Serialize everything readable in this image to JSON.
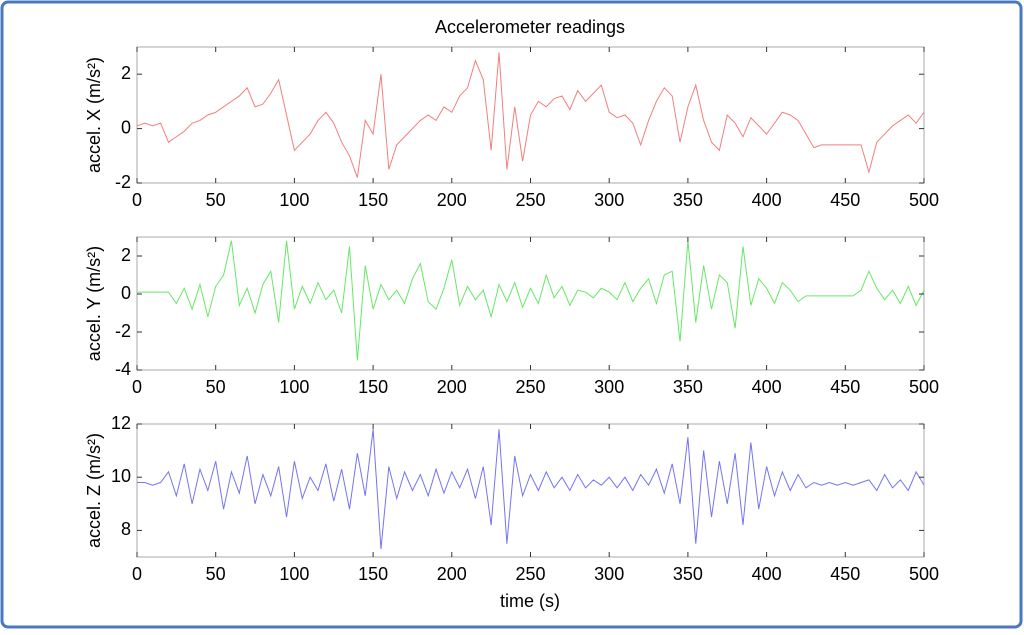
{
  "chart_data": [
    {
      "type": "line",
      "title": "Accelerometer readings",
      "y_label": "accel. X (m/s²)",
      "color": "#f27f7f",
      "xlim": [
        0,
        500
      ],
      "xticks": [
        0,
        50,
        100,
        150,
        200,
        250,
        300,
        350,
        400,
        450,
        500
      ],
      "ylim": [
        -2,
        3
      ],
      "yticks": [
        -2,
        0,
        2
      ],
      "x": [
        0,
        5,
        10,
        15,
        20,
        25,
        30,
        35,
        40,
        45,
        50,
        55,
        60,
        65,
        70,
        75,
        80,
        85,
        90,
        95,
        100,
        105,
        110,
        115,
        120,
        125,
        130,
        135,
        140,
        145,
        150,
        155,
        160,
        165,
        170,
        175,
        180,
        185,
        190,
        195,
        200,
        205,
        210,
        215,
        220,
        225,
        230,
        235,
        240,
        245,
        250,
        255,
        260,
        265,
        270,
        275,
        280,
        285,
        290,
        295,
        300,
        305,
        310,
        315,
        320,
        325,
        330,
        335,
        340,
        345,
        350,
        355,
        360,
        365,
        370,
        375,
        380,
        385,
        390,
        395,
        400,
        405,
        410,
        415,
        420,
        425,
        430,
        435,
        440,
        445,
        450,
        455,
        460,
        465,
        470,
        475,
        480,
        485,
        490,
        495,
        500
      ],
      "values": [
        0.1,
        0.2,
        0.1,
        0.2,
        -0.5,
        -0.3,
        -0.1,
        0.2,
        0.3,
        0.5,
        0.6,
        0.8,
        1.0,
        1.2,
        1.5,
        0.8,
        0.9,
        1.3,
        1.8,
        0.5,
        -0.8,
        -0.5,
        -0.2,
        0.3,
        0.6,
        0.2,
        -0.5,
        -1.0,
        -1.8,
        0.3,
        -0.2,
        2.0,
        -1.5,
        -0.6,
        -0.3,
        0,
        0.3,
        0.5,
        0.3,
        0.8,
        0.6,
        1.2,
        1.5,
        2.5,
        1.8,
        -0.8,
        2.8,
        -1.5,
        0.8,
        -1.2,
        0.5,
        1.0,
        0.8,
        1.1,
        1.2,
        0.7,
        1.4,
        1.0,
        1.3,
        1.6,
        0.6,
        0.4,
        0.5,
        0.2,
        -0.6,
        0.3,
        1.0,
        1.5,
        1.2,
        -0.5,
        0.8,
        1.6,
        0.3,
        -0.5,
        -0.8,
        0.5,
        0.2,
        -0.3,
        0.4,
        0.1,
        -0.2,
        0.2,
        0.6,
        0.5,
        0.3,
        -0.2,
        -0.7,
        -0.6,
        -0.6,
        -0.6,
        -0.6,
        -0.6,
        -0.6,
        -1.6,
        -0.5,
        -0.2,
        0.1,
        0.3,
        0.5,
        0.2,
        0.6
      ]
    },
    {
      "type": "line",
      "y_label": "accel. Y (m/s²)",
      "color": "#66e866",
      "xlim": [
        0,
        500
      ],
      "xticks": [
        0,
        50,
        100,
        150,
        200,
        250,
        300,
        350,
        400,
        450,
        500
      ],
      "ylim": [
        -4,
        3
      ],
      "yticks": [
        -4,
        -2,
        0,
        2
      ],
      "x": [
        0,
        5,
        10,
        15,
        20,
        25,
        30,
        35,
        40,
        45,
        50,
        55,
        60,
        65,
        70,
        75,
        80,
        85,
        90,
        95,
        100,
        105,
        110,
        115,
        120,
        125,
        130,
        135,
        140,
        145,
        150,
        155,
        160,
        165,
        170,
        175,
        180,
        185,
        190,
        195,
        200,
        205,
        210,
        215,
        220,
        225,
        230,
        235,
        240,
        245,
        250,
        255,
        260,
        265,
        270,
        275,
        280,
        285,
        290,
        295,
        300,
        305,
        310,
        315,
        320,
        325,
        330,
        335,
        340,
        345,
        350,
        355,
        360,
        365,
        370,
        375,
        380,
        385,
        390,
        395,
        400,
        405,
        410,
        415,
        420,
        425,
        430,
        435,
        440,
        445,
        450,
        455,
        460,
        465,
        470,
        475,
        480,
        485,
        490,
        495,
        500
      ],
      "values": [
        0.1,
        0.1,
        0.1,
        0.1,
        0.1,
        -0.5,
        0.3,
        -0.8,
        0.5,
        -1.2,
        0.4,
        1.0,
        2.8,
        -0.6,
        0.3,
        -1.0,
        0.5,
        1.2,
        -1.5,
        2.8,
        -0.8,
        0.4,
        -0.5,
        0.6,
        -0.3,
        0.2,
        -1.0,
        2.5,
        -3.5,
        1.5,
        -0.8,
        0.5,
        -0.3,
        0.2,
        -0.5,
        0.8,
        1.6,
        -0.4,
        -0.8,
        0.3,
        1.8,
        -0.6,
        0.4,
        -0.3,
        0.2,
        -1.2,
        0.5,
        -0.4,
        0.6,
        -0.7,
        0.3,
        -0.5,
        1.0,
        -0.2,
        0.4,
        -0.6,
        0.2,
        0.1,
        -0.2,
        0.3,
        0.1,
        -0.3,
        0.6,
        -0.4,
        0.3,
        0.8,
        -0.5,
        1.0,
        1.2,
        -2.5,
        2.8,
        -1.5,
        1.5,
        -0.8,
        1.0,
        0.6,
        -1.8,
        2.5,
        -0.6,
        0.8,
        0.3,
        -0.5,
        0.6,
        0.2,
        -0.4,
        -0.1,
        -0.1,
        -0.1,
        -0.1,
        -0.1,
        -0.1,
        -0.1,
        0.2,
        1.2,
        0.3,
        -0.3,
        0.2,
        -0.5,
        0.4,
        -0.6,
        0.2
      ]
    },
    {
      "type": "line",
      "y_label": "accel. Z (m/s²)",
      "x_label": "time (s)",
      "color": "#7474f2",
      "xlim": [
        0,
        500
      ],
      "xticks": [
        0,
        50,
        100,
        150,
        200,
        250,
        300,
        350,
        400,
        450,
        500
      ],
      "ylim": [
        7,
        12
      ],
      "yticks": [
        8,
        10,
        12
      ],
      "x": [
        0,
        5,
        10,
        15,
        20,
        25,
        30,
        35,
        40,
        45,
        50,
        55,
        60,
        65,
        70,
        75,
        80,
        85,
        90,
        95,
        100,
        105,
        110,
        115,
        120,
        125,
        130,
        135,
        140,
        145,
        150,
        155,
        160,
        165,
        170,
        175,
        180,
        185,
        190,
        195,
        200,
        205,
        210,
        215,
        220,
        225,
        230,
        235,
        240,
        245,
        250,
        255,
        260,
        265,
        270,
        275,
        280,
        285,
        290,
        295,
        300,
        305,
        310,
        315,
        320,
        325,
        330,
        335,
        340,
        345,
        350,
        355,
        360,
        365,
        370,
        375,
        380,
        385,
        390,
        395,
        400,
        405,
        410,
        415,
        420,
        425,
        430,
        435,
        440,
        445,
        450,
        455,
        460,
        465,
        470,
        475,
        480,
        485,
        490,
        495,
        500
      ],
      "values": [
        9.8,
        9.8,
        9.7,
        9.8,
        10.2,
        9.3,
        10.5,
        9.0,
        10.3,
        9.5,
        10.6,
        8.8,
        10.2,
        9.4,
        10.8,
        9.0,
        10.1,
        9.3,
        10.4,
        8.5,
        10.6,
        9.2,
        10.0,
        9.5,
        10.5,
        9.1,
        10.3,
        8.8,
        10.9,
        9.3,
        11.8,
        7.3,
        10.4,
        9.2,
        10.2,
        9.5,
        10.1,
        9.3,
        10.3,
        9.4,
        10.2,
        9.6,
        10.3,
        9.2,
        10.4,
        8.2,
        11.8,
        7.5,
        10.8,
        9.3,
        10.1,
        9.5,
        10.2,
        9.6,
        10.0,
        9.5,
        10.1,
        9.6,
        9.9,
        9.7,
        10.0,
        9.6,
        10.0,
        9.5,
        10.1,
        9.7,
        10.3,
        9.4,
        10.5,
        9.0,
        11.5,
        7.5,
        11.0,
        8.5,
        10.6,
        9.0,
        10.9,
        8.2,
        11.3,
        8.8,
        10.4,
        9.3,
        10.2,
        9.5,
        10.1,
        9.6,
        9.8,
        9.7,
        9.8,
        9.7,
        9.8,
        9.7,
        9.8,
        9.9,
        9.5,
        10.1,
        9.6,
        9.9,
        9.5,
        10.2,
        9.7
      ]
    }
  ]
}
